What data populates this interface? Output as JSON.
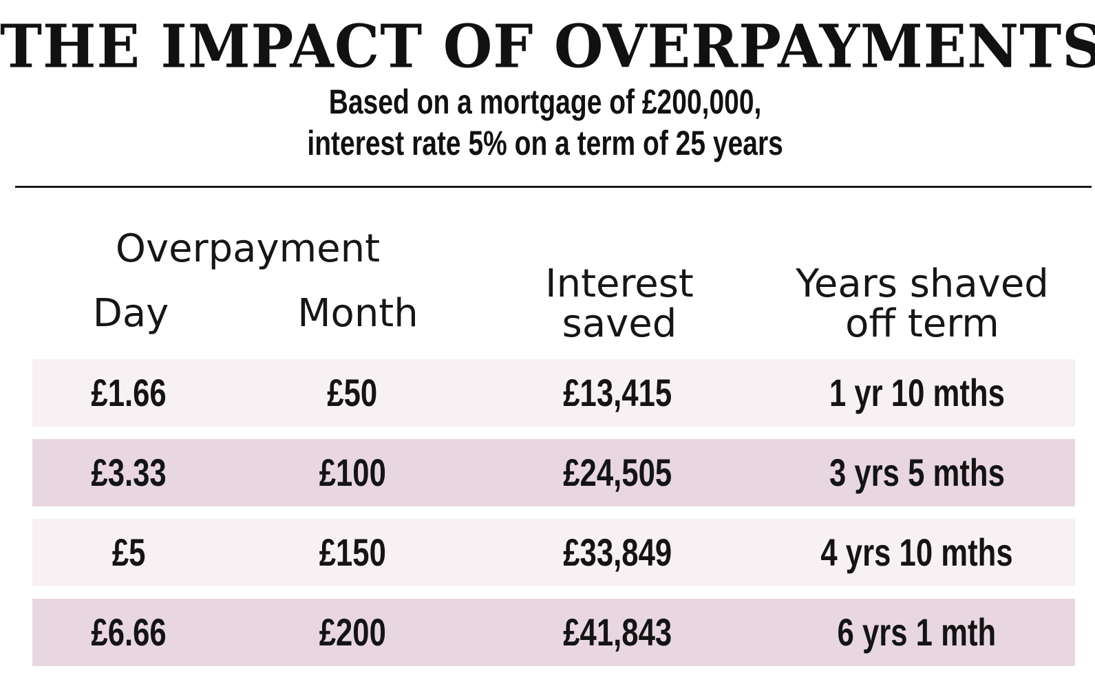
{
  "chart_data": {
    "type": "table",
    "title": "THE IMPACT OF OVERPAYMENTS",
    "subtitle_lines": [
      "Based on a mortgage of £200,000,",
      "interest rate 5% on a term of 25 years"
    ],
    "header": {
      "group": "Overpayment",
      "day": "Day",
      "month": "Month",
      "interest_line1": "Interest",
      "interest_line2": "saved",
      "years_line1": "Years shaved",
      "years_line2": "off term"
    },
    "columns": [
      "Day",
      "Month",
      "Interest saved",
      "Years shaved off term"
    ],
    "rows": [
      {
        "day": "£1.66",
        "month": "£50",
        "interest": "£13,415",
        "years": "1 yr 10 mths"
      },
      {
        "day": "£3.33",
        "month": "£100",
        "interest": "£24,505",
        "years": "3 yrs 5 mths"
      },
      {
        "day": "£5",
        "month": "£150",
        "interest": "£33,849",
        "years": "4 yrs 10 mths"
      },
      {
        "day": "£6.66",
        "month": "£200",
        "interest": "£41,843",
        "years": "6 yrs 1 mth"
      }
    ],
    "colors": {
      "row_light": "#f7f1f3",
      "row_dark": "#e8d7e1",
      "text": "#111111",
      "rule": "#1a1a1a"
    }
  }
}
